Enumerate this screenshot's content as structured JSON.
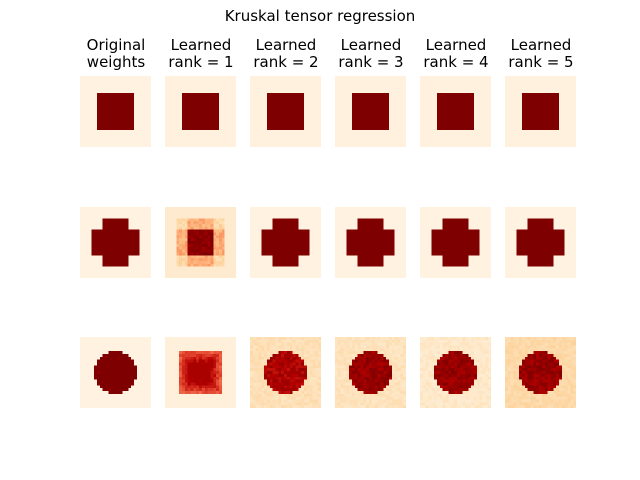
{
  "chart_data": {
    "type": "heatmap",
    "title": "Kruskal tensor regression",
    "colormap": "OrRd",
    "columns": [
      {
        "title_lines": [
          "Original",
          "weights"
        ]
      },
      {
        "title_lines": [
          "Learned",
          "rank = 1"
        ]
      },
      {
        "title_lines": [
          "Learned",
          "rank = 2"
        ]
      },
      {
        "title_lines": [
          "Learned",
          "rank = 3"
        ]
      },
      {
        "title_lines": [
          "Learned",
          "rank = 4"
        ]
      },
      {
        "title_lines": [
          "Learned",
          "rank = 5"
        ]
      }
    ],
    "rows": [
      {
        "pattern": "square",
        "grid_size": 25,
        "panels": [
          {
            "max_level": 1.0,
            "background_level": 0.04
          },
          {
            "max_level": 1.0,
            "background_level": 0.05
          },
          {
            "max_level": 1.0,
            "background_level": 0.05
          },
          {
            "max_level": 1.0,
            "background_level": 0.05
          },
          {
            "max_level": 1.0,
            "background_level": 0.05
          },
          {
            "max_level": 1.0,
            "background_level": 0.05
          }
        ]
      },
      {
        "pattern": "cross",
        "grid_size": 25,
        "panels": [
          {
            "max_level": 1.0,
            "background_level": 0.04
          },
          {
            "max_level": 1.0,
            "background_level": 0.1
          },
          {
            "max_level": 1.0,
            "background_level": 0.04
          },
          {
            "max_level": 1.0,
            "background_level": 0.04
          },
          {
            "max_level": 1.0,
            "background_level": 0.04
          },
          {
            "max_level": 1.0,
            "background_level": 0.04
          }
        ]
      },
      {
        "pattern": "disk",
        "grid_size": 25,
        "panels": [
          {
            "max_level": 1.0,
            "background_level": 0.04
          },
          {
            "max_level": 0.9,
            "background_level": 0.06
          },
          {
            "max_level": 0.95,
            "background_level": 0.18
          },
          {
            "max_level": 1.0,
            "background_level": 0.16
          },
          {
            "max_level": 1.0,
            "background_level": 0.12
          },
          {
            "max_level": 1.0,
            "background_level": 0.22
          }
        ]
      }
    ]
  }
}
